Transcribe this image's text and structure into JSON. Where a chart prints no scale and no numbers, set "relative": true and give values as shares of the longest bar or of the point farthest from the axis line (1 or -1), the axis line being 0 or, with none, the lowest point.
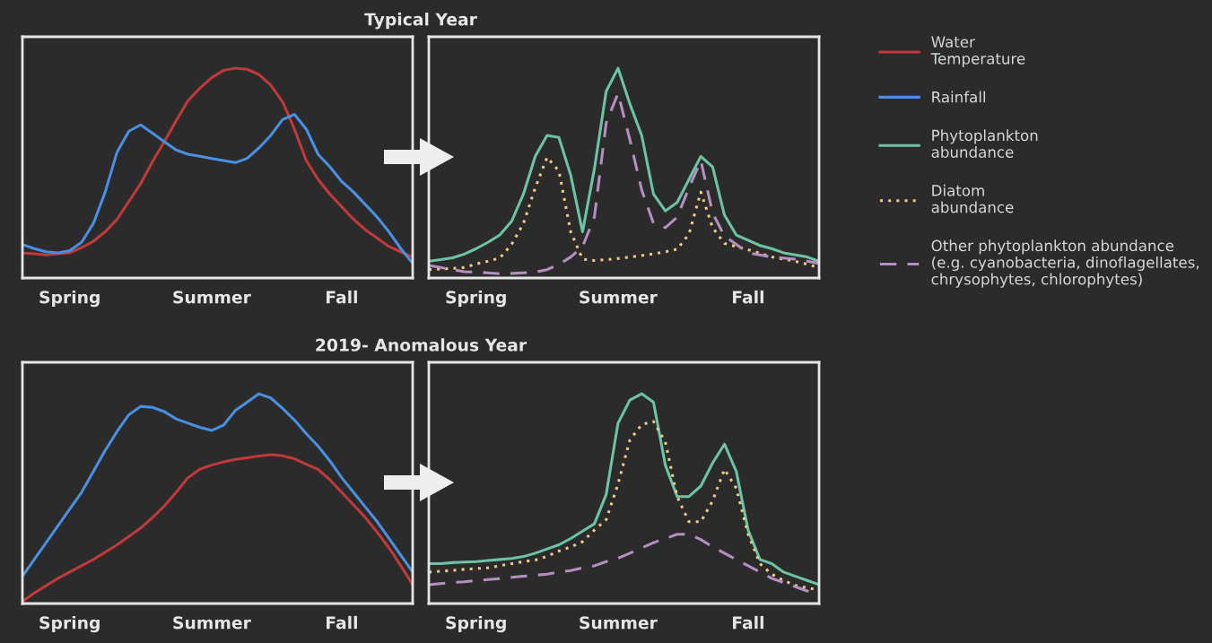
{
  "chart_data": [
    {
      "type": "line",
      "title": "Typical Year",
      "relative": true,
      "categories": [
        null,
        null,
        null,
        null,
        "Spring",
        null,
        null,
        null,
        null,
        null,
        null,
        null,
        null,
        null,
        null,
        null,
        "Summer",
        null,
        null,
        null,
        null,
        null,
        null,
        null,
        null,
        null,
        null,
        "Fall",
        null,
        null,
        null,
        null,
        null,
        null
      ],
      "tick_labels": "x",
      "grid": false,
      "legend": "right",
      "series": [
        {
          "name": "Water\nTemperature",
          "color": "#c0393b",
          "line_style": "solid",
          "values": [
            0.12,
            0.115,
            0.11,
            0.115,
            0.12,
            0.145,
            0.175,
            0.22,
            0.28,
            0.365,
            0.45,
            0.555,
            0.65,
            0.75,
            0.845,
            0.905,
            0.955,
            0.99,
            1.0,
            0.995,
            0.97,
            0.92,
            0.84,
            0.71,
            0.56,
            0.47,
            0.4,
            0.34,
            0.28,
            0.23,
            0.19,
            0.15,
            0.125,
            0.1
          ]
        },
        {
          "name": "Rainfall",
          "color": "#4a90e2",
          "line_style": "solid",
          "values": [
            0.16,
            0.14,
            0.125,
            0.12,
            0.13,
            0.17,
            0.26,
            0.41,
            0.6,
            0.7,
            0.73,
            0.69,
            0.65,
            0.61,
            0.59,
            0.58,
            0.57,
            0.56,
            0.55,
            0.57,
            0.62,
            0.68,
            0.755,
            0.78,
            0.71,
            0.59,
            0.53,
            0.46,
            0.41,
            0.35,
            0.29,
            0.22,
            0.14,
            0.07
          ]
        }
      ]
    },
    {
      "type": "line",
      "relative": true,
      "categories": [
        null,
        null,
        null,
        null,
        "Spring",
        null,
        null,
        null,
        null,
        null,
        null,
        null,
        null,
        null,
        null,
        null,
        "Summer",
        null,
        null,
        null,
        null,
        null,
        null,
        null,
        null,
        null,
        null,
        "Fall",
        null,
        null,
        null,
        null,
        null,
        null
      ],
      "tick_labels": "x",
      "grid": false,
      "legend": "right",
      "series": [
        {
          "name": "Phytoplankton\nabundance",
          "color": "#6cc4a4",
          "line_style": "solid",
          "values": [
            0.08,
            0.088,
            0.096,
            0.114,
            0.14,
            0.17,
            0.205,
            0.27,
            0.4,
            0.58,
            0.68,
            0.67,
            0.49,
            0.22,
            0.52,
            0.89,
            1.0,
            0.83,
            0.68,
            0.4,
            0.32,
            0.36,
            0.47,
            0.58,
            0.53,
            0.3,
            0.205,
            0.18,
            0.155,
            0.14,
            0.12,
            0.11,
            0.1,
            0.08
          ]
        },
        {
          "name": "Diatom\nabundance",
          "color": "#f0c987",
          "line_style": "dotted",
          "values": [
            0.04,
            0.043,
            0.046,
            0.05,
            0.067,
            0.08,
            0.095,
            0.16,
            0.26,
            0.43,
            0.575,
            0.51,
            0.22,
            0.09,
            0.083,
            0.088,
            0.093,
            0.1,
            0.107,
            0.115,
            0.125,
            0.137,
            0.21,
            0.41,
            0.24,
            0.165,
            0.15,
            0.135,
            0.118,
            0.1,
            0.09,
            0.08,
            0.065,
            0.05
          ]
        },
        {
          "name": "Other phytoplankton abundance\n(e.g. cyanobacteria, dinoflagellates,\nchrysophytes, chlorophytes)",
          "color": "#b48fc0",
          "line_style": "dashed",
          "values": [
            0.06,
            0.05,
            0.04,
            0.03,
            0.028,
            0.025,
            0.02,
            0.022,
            0.025,
            0.028,
            0.04,
            0.065,
            0.1,
            0.15,
            0.29,
            0.74,
            0.88,
            0.66,
            0.42,
            0.26,
            0.24,
            0.29,
            0.43,
            0.56,
            0.31,
            0.2,
            0.16,
            0.12,
            0.11,
            0.1,
            0.095,
            0.09,
            0.08,
            0.07
          ]
        }
      ]
    },
    {
      "type": "line",
      "title": "2019- Anomalous Year",
      "relative": true,
      "categories": [
        null,
        null,
        null,
        null,
        "Spring",
        null,
        null,
        null,
        null,
        null,
        null,
        null,
        null,
        null,
        null,
        null,
        "Summer",
        null,
        null,
        null,
        null,
        null,
        null,
        null,
        null,
        null,
        null,
        "Fall",
        null,
        null,
        null,
        null,
        null,
        null
      ],
      "tick_labels": "x",
      "grid": false,
      "series": [
        {
          "color": "#4a90e2",
          "line_style": "solid",
          "values": [
            0.13,
            0.21,
            0.29,
            0.37,
            0.45,
            0.53,
            0.63,
            0.73,
            0.82,
            0.9,
            0.94,
            0.935,
            0.915,
            0.88,
            0.86,
            0.84,
            0.825,
            0.85,
            0.92,
            0.96,
            1.0,
            0.98,
            0.93,
            0.875,
            0.81,
            0.75,
            0.68,
            0.6,
            0.53,
            0.46,
            0.39,
            0.31,
            0.23,
            0.15
          ]
        },
        {
          "color": "#c0393b",
          "line_style": "solid",
          "values": [
            0.01,
            0.05,
            0.085,
            0.12,
            0.15,
            0.18,
            0.21,
            0.245,
            0.28,
            0.32,
            0.36,
            0.41,
            0.465,
            0.53,
            0.6,
            0.64,
            0.66,
            0.675,
            0.687,
            0.695,
            0.703,
            0.71,
            0.704,
            0.69,
            0.664,
            0.64,
            0.59,
            0.53,
            0.47,
            0.41,
            0.34,
            0.265,
            0.18,
            0.09
          ]
        }
      ]
    },
    {
      "type": "line",
      "relative": true,
      "categories": [
        null,
        null,
        null,
        null,
        "Spring",
        null,
        null,
        null,
        null,
        null,
        null,
        null,
        null,
        null,
        null,
        null,
        "Summer",
        null,
        null,
        null,
        null,
        null,
        null,
        null,
        null,
        null,
        null,
        "Fall",
        null,
        null,
        null,
        null,
        null,
        null
      ],
      "tick_labels": "x",
      "grid": false,
      "series": [
        {
          "color": "#6cc4a4",
          "line_style": "solid",
          "values": [
            0.19,
            0.19,
            0.195,
            0.198,
            0.2,
            0.205,
            0.21,
            0.215,
            0.224,
            0.24,
            0.26,
            0.28,
            0.31,
            0.345,
            0.38,
            0.52,
            0.86,
            0.97,
            1.0,
            0.96,
            0.66,
            0.51,
            0.51,
            0.56,
            0.67,
            0.76,
            0.63,
            0.35,
            0.21,
            0.19,
            0.15,
            0.13,
            0.11,
            0.09
          ]
        },
        {
          "color": "#f0c987",
          "line_style": "dotted",
          "values": [
            0.15,
            0.154,
            0.158,
            0.163,
            0.167,
            0.17,
            0.18,
            0.19,
            0.2,
            0.207,
            0.225,
            0.25,
            0.27,
            0.295,
            0.35,
            0.4,
            0.57,
            0.78,
            0.853,
            0.868,
            0.77,
            0.51,
            0.39,
            0.39,
            0.49,
            0.64,
            0.55,
            0.33,
            0.19,
            0.14,
            0.11,
            0.087,
            0.075,
            0.064
          ]
        },
        {
          "color": "#b48fc0",
          "line_style": "dashed",
          "values": [
            0.09,
            0.095,
            0.1,
            0.104,
            0.11,
            0.114,
            0.119,
            0.125,
            0.13,
            0.135,
            0.14,
            0.15,
            0.157,
            0.17,
            0.18,
            0.2,
            0.216,
            0.24,
            0.265,
            0.29,
            0.31,
            0.33,
            0.33,
            0.305,
            0.27,
            0.24,
            0.21,
            0.18,
            0.15,
            0.12,
            0.1,
            0.08,
            0.06,
            0.045
          ]
        }
      ]
    }
  ]
}
